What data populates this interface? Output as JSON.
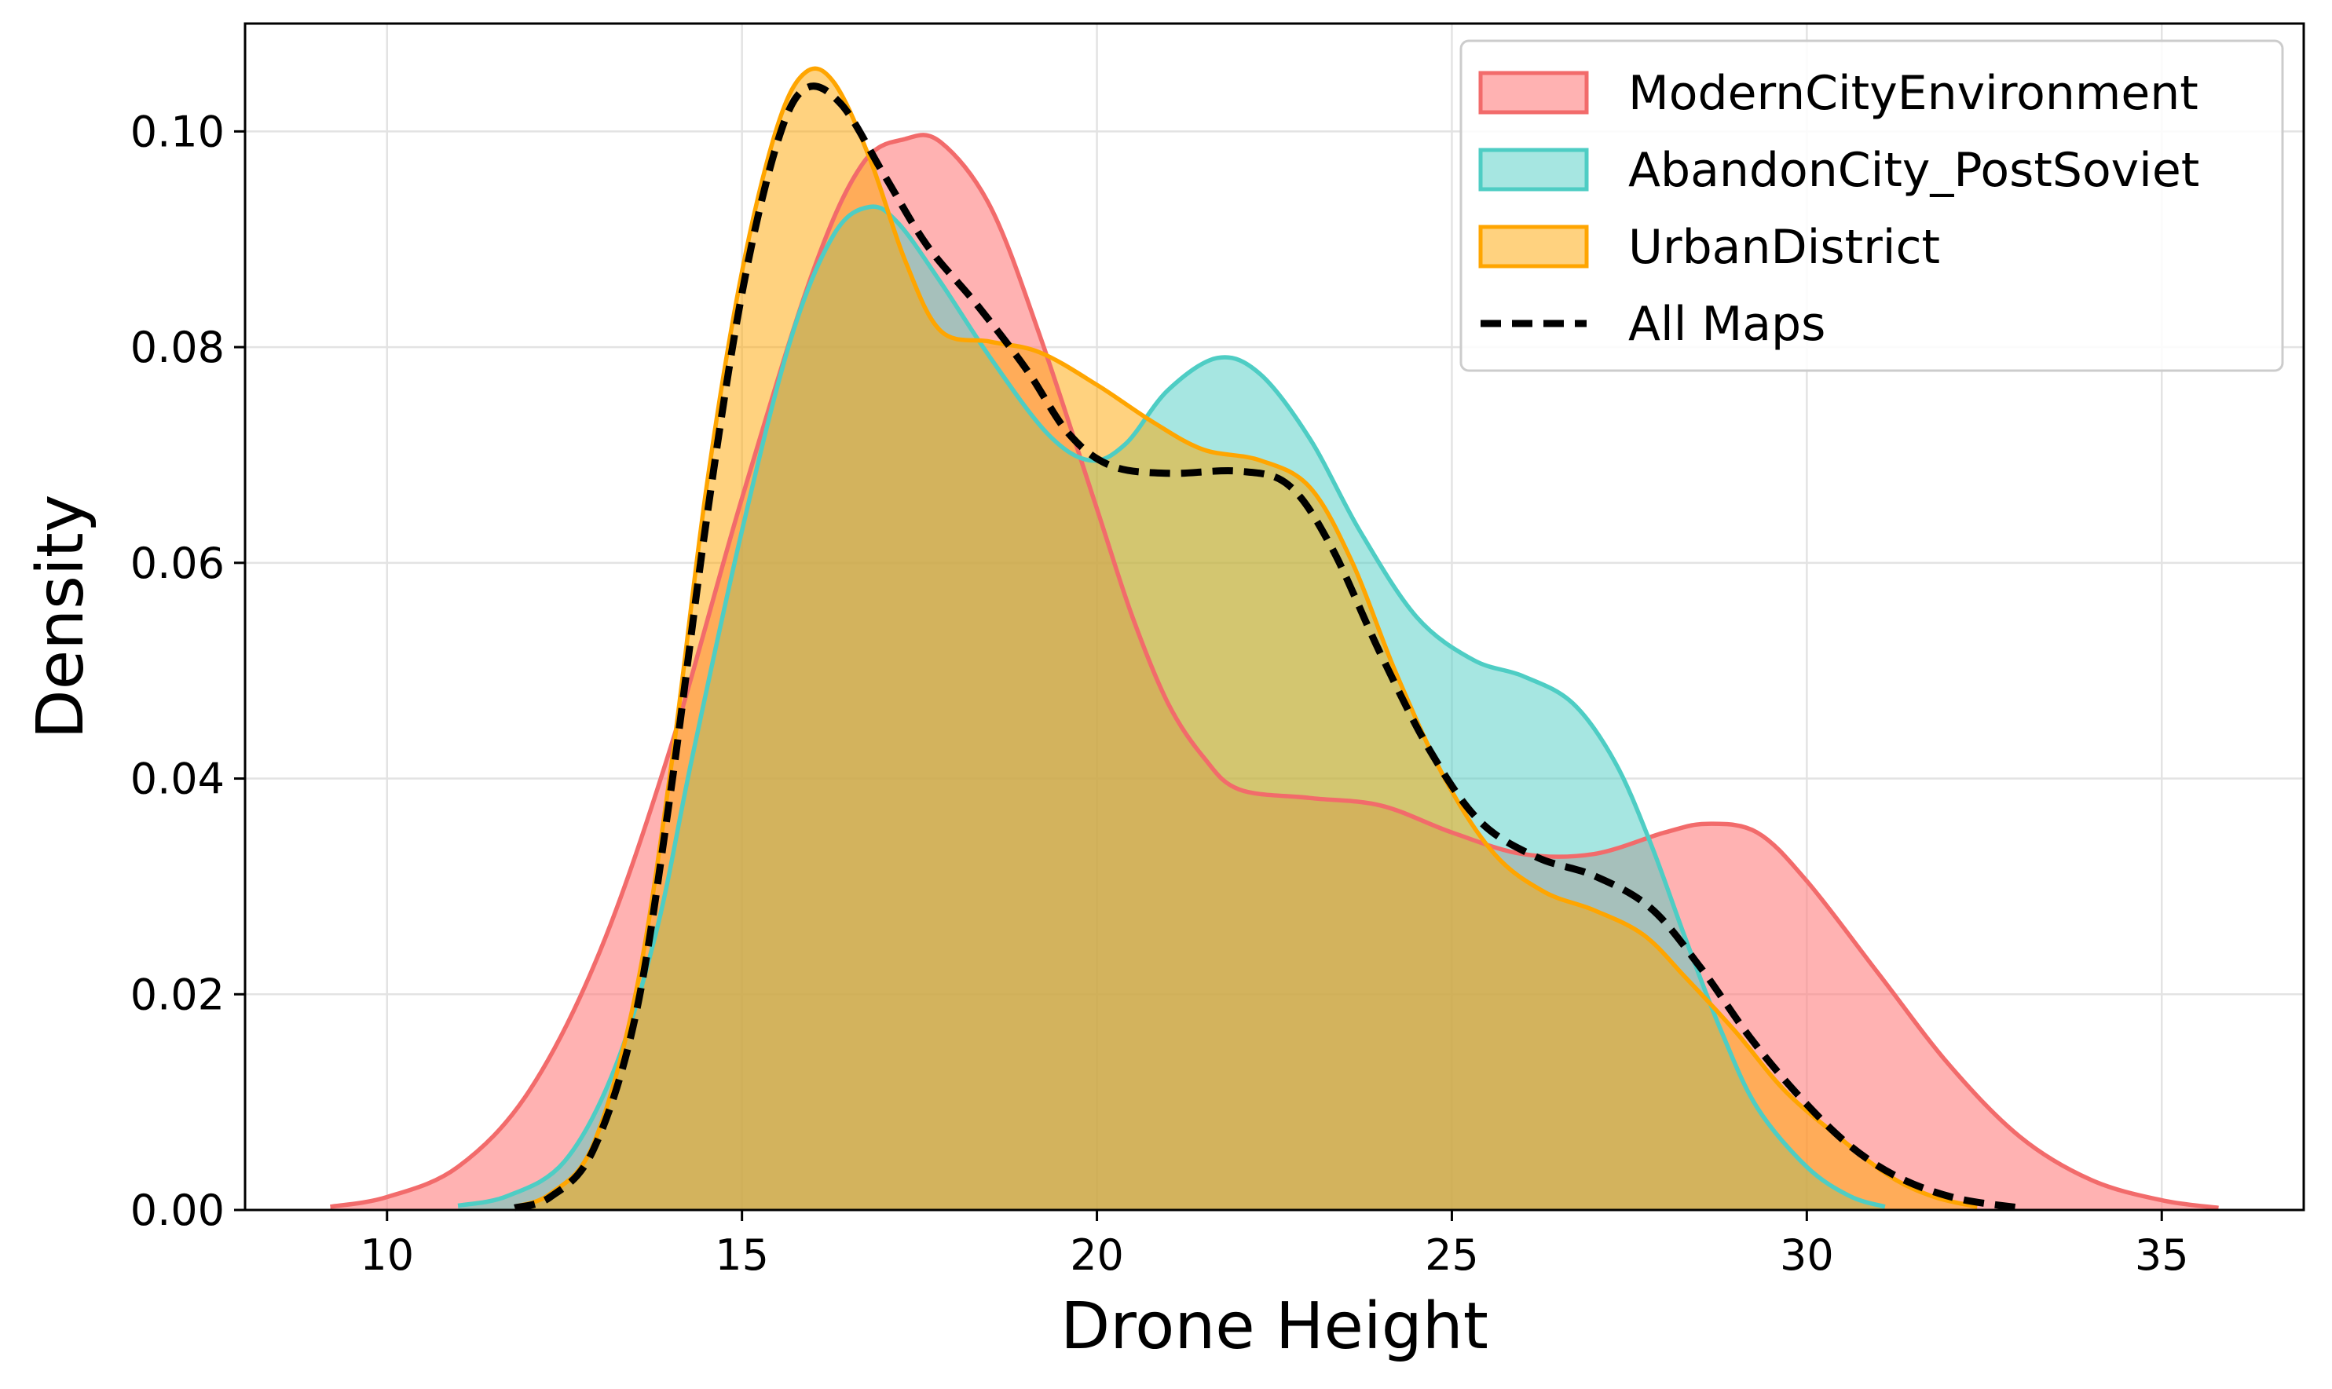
{
  "chart_data": {
    "type": "area",
    "title": "",
    "xlabel": "Drone Height",
    "ylabel": "Density",
    "xlim": [
      8,
      37
    ],
    "ylim": [
      0,
      0.11
    ],
    "xticks": [
      10,
      15,
      20,
      25,
      30,
      35
    ],
    "yticks": [
      0.0,
      0.02,
      0.04,
      0.06,
      0.08,
      0.1
    ],
    "xtick_labels": [
      "10",
      "15",
      "20",
      "25",
      "30",
      "35"
    ],
    "ytick_labels": [
      "0.00",
      "0.02",
      "0.04",
      "0.06",
      "0.08",
      "0.10"
    ],
    "grid": true,
    "legend_position": "top-right",
    "series": [
      {
        "name": "ModernCityEnvironment",
        "line_color": "#f26b6b",
        "fill_color": "#ff7f7f",
        "fill_opacity": 0.6,
        "dashed": false,
        "points": [
          [
            9.2,
            0.0003
          ],
          [
            10,
            0.0012
          ],
          [
            11,
            0.004
          ],
          [
            12,
            0.011
          ],
          [
            13,
            0.024
          ],
          [
            14,
            0.043
          ],
          [
            15,
            0.066
          ],
          [
            16,
            0.087
          ],
          [
            16.7,
            0.097
          ],
          [
            17.3,
            0.0993
          ],
          [
            17.8,
            0.099
          ],
          [
            18.5,
            0.093
          ],
          [
            19.2,
            0.081
          ],
          [
            20,
            0.065
          ],
          [
            20.5,
            0.055
          ],
          [
            21,
            0.047
          ],
          [
            21.5,
            0.042
          ],
          [
            22,
            0.039
          ],
          [
            23,
            0.0382
          ],
          [
            24,
            0.0375
          ],
          [
            25,
            0.035
          ],
          [
            26,
            0.033
          ],
          [
            27,
            0.033
          ],
          [
            28,
            0.035
          ],
          [
            28.6,
            0.0358
          ],
          [
            29.3,
            0.035
          ],
          [
            30,
            0.0305
          ],
          [
            31,
            0.022
          ],
          [
            32,
            0.0135
          ],
          [
            33,
            0.0068
          ],
          [
            34,
            0.0028
          ],
          [
            35,
            0.0009
          ],
          [
            35.8,
            0.0002
          ]
        ]
      },
      {
        "name": "AbandonCity_PostSoviet",
        "line_color": "#4ecdc4",
        "fill_color": "#4ecdc4",
        "fill_opacity": 0.5,
        "dashed": false,
        "points": [
          [
            11,
            0.0004
          ],
          [
            11.7,
            0.0013
          ],
          [
            12.5,
            0.0045
          ],
          [
            13.2,
            0.013
          ],
          [
            13.8,
            0.026
          ],
          [
            14.3,
            0.042
          ],
          [
            15,
            0.063
          ],
          [
            15.7,
            0.081
          ],
          [
            16.3,
            0.0905
          ],
          [
            16.8,
            0.093
          ],
          [
            17.2,
            0.0915
          ],
          [
            17.8,
            0.086
          ],
          [
            18.5,
            0.079
          ],
          [
            19.3,
            0.072
          ],
          [
            19.9,
            0.0695
          ],
          [
            20.4,
            0.071
          ],
          [
            21,
            0.076
          ],
          [
            21.7,
            0.079
          ],
          [
            22.3,
            0.0775
          ],
          [
            23,
            0.0715
          ],
          [
            23.7,
            0.063
          ],
          [
            24.5,
            0.055
          ],
          [
            25.3,
            0.051
          ],
          [
            26,
            0.0495
          ],
          [
            26.7,
            0.047
          ],
          [
            27.3,
            0.0415
          ],
          [
            27.8,
            0.034
          ],
          [
            28.3,
            0.025
          ],
          [
            28.8,
            0.0165
          ],
          [
            29.3,
            0.0095
          ],
          [
            30,
            0.004
          ],
          [
            30.6,
            0.0013
          ],
          [
            31.1,
            0.0003
          ]
        ]
      },
      {
        "name": "UrbanDistrict",
        "line_color": "#ffa500",
        "fill_color": "#ffa500",
        "fill_opacity": 0.5,
        "dashed": false,
        "points": [
          [
            11.8,
            0.0003
          ],
          [
            12.3,
            0.0015
          ],
          [
            12.9,
            0.006
          ],
          [
            13.5,
            0.02
          ],
          [
            14,
            0.041
          ],
          [
            14.5,
            0.067
          ],
          [
            15,
            0.087
          ],
          [
            15.5,
            0.1005
          ],
          [
            15.9,
            0.1055
          ],
          [
            16.3,
            0.1045
          ],
          [
            16.8,
            0.0975
          ],
          [
            17.3,
            0.088
          ],
          [
            17.8,
            0.0815
          ],
          [
            18.5,
            0.0805
          ],
          [
            19.2,
            0.0795
          ],
          [
            20,
            0.0765
          ],
          [
            20.8,
            0.073
          ],
          [
            21.5,
            0.0705
          ],
          [
            22.3,
            0.0695
          ],
          [
            23,
            0.067
          ],
          [
            23.6,
            0.06
          ],
          [
            24.2,
            0.05
          ],
          [
            24.9,
            0.04
          ],
          [
            25.6,
            0.033
          ],
          [
            26.3,
            0.0295
          ],
          [
            27,
            0.0278
          ],
          [
            27.7,
            0.0255
          ],
          [
            28.3,
            0.0215
          ],
          [
            29,
            0.0165
          ],
          [
            29.7,
            0.011
          ],
          [
            30.5,
            0.0065
          ],
          [
            31.2,
            0.003
          ],
          [
            31.8,
            0.0012
          ],
          [
            32.4,
            0.0003
          ]
        ]
      },
      {
        "name": "All Maps",
        "line_color": "#000000",
        "fill_color": "none",
        "fill_opacity": 0,
        "dashed": true,
        "points": [
          [
            11.8,
            0.0002
          ],
          [
            12.3,
            0.0012
          ],
          [
            12.9,
            0.0055
          ],
          [
            13.5,
            0.018
          ],
          [
            14,
            0.039
          ],
          [
            14.5,
            0.064
          ],
          [
            15,
            0.085
          ],
          [
            15.5,
            0.099
          ],
          [
            15.9,
            0.104
          ],
          [
            16.4,
            0.1025
          ],
          [
            17,
            0.096
          ],
          [
            17.6,
            0.0895
          ],
          [
            18.3,
            0.084
          ],
          [
            19,
            0.078
          ],
          [
            19.6,
            0.072
          ],
          [
            20.2,
            0.069
          ],
          [
            21,
            0.0683
          ],
          [
            22,
            0.0685
          ],
          [
            22.7,
            0.0672
          ],
          [
            23.3,
            0.0615
          ],
          [
            24,
            0.0515
          ],
          [
            24.7,
            0.0425
          ],
          [
            25.4,
            0.036
          ],
          [
            26.2,
            0.0327
          ],
          [
            27,
            0.031
          ],
          [
            27.8,
            0.028
          ],
          [
            28.5,
            0.0225
          ],
          [
            29.2,
            0.016
          ],
          [
            29.9,
            0.0105
          ],
          [
            30.6,
            0.006
          ],
          [
            31.3,
            0.003
          ],
          [
            32.1,
            0.0011
          ],
          [
            33,
            0.0002
          ]
        ]
      }
    ]
  }
}
